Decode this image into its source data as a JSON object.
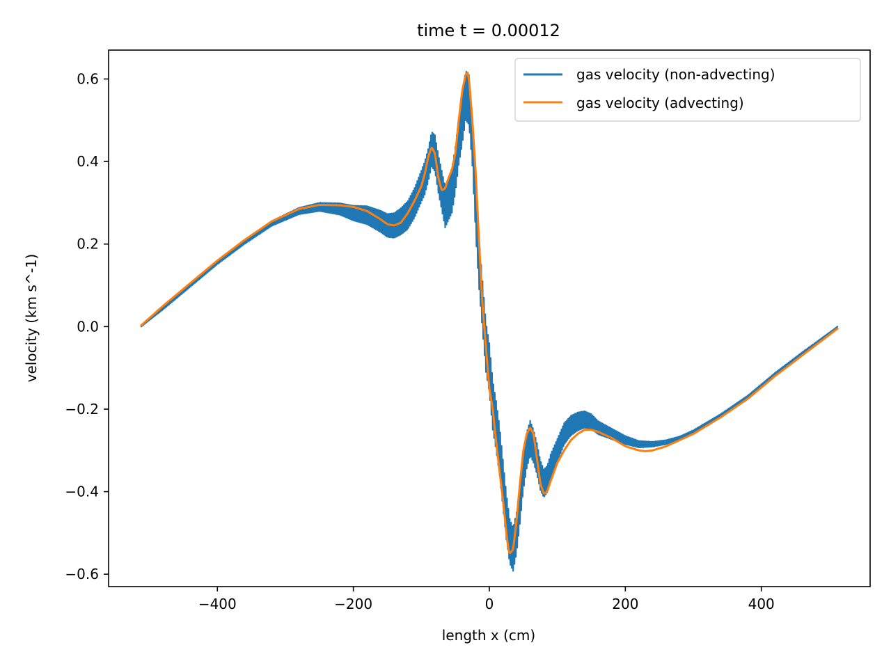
{
  "chart_data": {
    "type": "line",
    "title": "time t = 0.00012",
    "xlabel": "length x (cm)",
    "ylabel": "velocity (km s^-1)",
    "xlim": [
      -560,
      560
    ],
    "ylim": [
      -0.63,
      0.67
    ],
    "xticks": [
      -400,
      -200,
      0,
      200,
      400
    ],
    "xtick_labels": [
      "−400",
      "−200",
      "0",
      "200",
      "400"
    ],
    "yticks": [
      -0.6,
      -0.4,
      -0.2,
      0.0,
      0.2,
      0.4,
      0.6
    ],
    "ytick_labels": [
      "−0.6",
      "−0.4",
      "−0.2",
      "0.0",
      "0.2",
      "0.4",
      "0.6"
    ],
    "grid": false,
    "legend": "upper right",
    "series": [
      {
        "name": "gas velocity (non-advecting)",
        "color": "#1f77b4",
        "x": [
          -512,
          -480,
          -440,
          -400,
          -360,
          -320,
          -280,
          -250,
          -220,
          -200,
          -180,
          -160,
          -150,
          -140,
          -130,
          -120,
          -110,
          -100,
          -95,
          -90,
          -85,
          -80,
          -75,
          -70,
          -65,
          -60,
          -55,
          -50,
          -45,
          -40,
          -35,
          -30,
          -25,
          -20,
          -15,
          -10,
          -5,
          0,
          5,
          10,
          15,
          20,
          25,
          30,
          35,
          40,
          45,
          50,
          55,
          60,
          65,
          70,
          75,
          80,
          85,
          90,
          100,
          110,
          120,
          130,
          140,
          150,
          160,
          180,
          200,
          220,
          240,
          260,
          280,
          300,
          340,
          380,
          420,
          460,
          512
        ],
        "y": [
          0.0,
          0.045,
          0.1,
          0.155,
          0.205,
          0.25,
          0.28,
          0.29,
          0.285,
          0.275,
          0.27,
          0.255,
          0.245,
          0.245,
          0.255,
          0.27,
          0.3,
          0.34,
          0.36,
          0.39,
          0.43,
          0.42,
          0.37,
          0.33,
          0.29,
          0.31,
          0.33,
          0.38,
          0.45,
          0.5,
          0.56,
          0.55,
          0.45,
          0.28,
          0.15,
          0.05,
          -0.05,
          -0.1,
          -0.19,
          -0.24,
          -0.3,
          -0.38,
          -0.46,
          -0.52,
          -0.54,
          -0.5,
          -0.43,
          -0.35,
          -0.3,
          -0.27,
          -0.29,
          -0.32,
          -0.36,
          -0.38,
          -0.37,
          -0.34,
          -0.3,
          -0.26,
          -0.24,
          -0.23,
          -0.225,
          -0.23,
          -0.245,
          -0.26,
          -0.275,
          -0.285,
          -0.285,
          -0.28,
          -0.27,
          -0.255,
          -0.215,
          -0.17,
          -0.115,
          -0.065,
          0.0
        ],
        "amplitude": [
          0.0,
          0.004,
          0.004,
          0.004,
          0.005,
          0.006,
          0.008,
          0.01,
          0.014,
          0.018,
          0.022,
          0.026,
          0.028,
          0.03,
          0.032,
          0.034,
          0.036,
          0.038,
          0.04,
          0.04,
          0.042,
          0.044,
          0.046,
          0.048,
          0.05,
          0.052,
          0.054,
          0.056,
          0.058,
          0.06,
          0.06,
          0.06,
          0.06,
          0.06,
          0.06,
          0.06,
          0.06,
          0.06,
          0.06,
          0.06,
          0.06,
          0.058,
          0.056,
          0.054,
          0.052,
          0.05,
          0.048,
          0.046,
          0.044,
          0.042,
          0.04,
          0.038,
          0.036,
          0.034,
          0.032,
          0.03,
          0.028,
          0.026,
          0.024,
          0.022,
          0.02,
          0.018,
          0.016,
          0.013,
          0.01,
          0.008,
          0.006,
          0.005,
          0.004,
          0.004,
          0.003,
          0.003,
          0.003,
          0.003,
          0.0
        ]
      },
      {
        "name": "gas velocity (advecting)",
        "color": "#ff7f0e",
        "x": [
          -512,
          -480,
          -440,
          -400,
          -360,
          -320,
          -280,
          -250,
          -220,
          -200,
          -180,
          -160,
          -150,
          -140,
          -130,
          -120,
          -110,
          -100,
          -95,
          -90,
          -85,
          -80,
          -75,
          -70,
          -65,
          -60,
          -55,
          -50,
          -45,
          -40,
          -35,
          -32,
          -30,
          -25,
          -20,
          -15,
          -10,
          -5,
          0,
          5,
          10,
          15,
          20,
          25,
          28,
          30,
          35,
          40,
          45,
          50,
          55,
          60,
          65,
          70,
          75,
          80,
          85,
          90,
          100,
          110,
          120,
          130,
          140,
          150,
          160,
          180,
          200,
          220,
          230,
          240,
          260,
          280,
          300,
          340,
          380,
          420,
          460,
          512
        ],
        "y": [
          0.003,
          0.05,
          0.105,
          0.16,
          0.21,
          0.255,
          0.285,
          0.295,
          0.294,
          0.29,
          0.28,
          0.26,
          0.248,
          0.245,
          0.252,
          0.275,
          0.305,
          0.34,
          0.37,
          0.41,
          0.435,
          0.42,
          0.36,
          0.33,
          0.335,
          0.36,
          0.38,
          0.42,
          0.5,
          0.57,
          0.61,
          0.615,
          0.6,
          0.5,
          0.37,
          0.2,
          0.05,
          -0.05,
          -0.15,
          -0.2,
          -0.28,
          -0.35,
          -0.42,
          -0.5,
          -0.54,
          -0.55,
          -0.54,
          -0.47,
          -0.38,
          -0.3,
          -0.26,
          -0.245,
          -0.26,
          -0.32,
          -0.38,
          -0.405,
          -0.4,
          -0.375,
          -0.33,
          -0.3,
          -0.275,
          -0.26,
          -0.25,
          -0.25,
          -0.255,
          -0.27,
          -0.29,
          -0.3,
          -0.302,
          -0.3,
          -0.29,
          -0.275,
          -0.26,
          -0.22,
          -0.175,
          -0.12,
          -0.07,
          -0.005
        ]
      }
    ]
  }
}
